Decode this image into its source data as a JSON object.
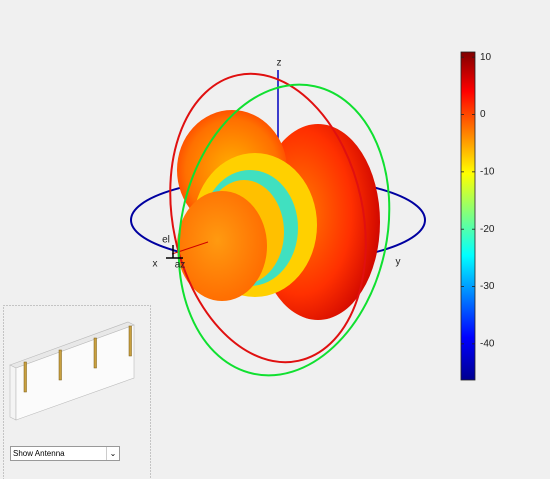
{
  "chart_data": {
    "type": "pattern3d",
    "axis_labels": {
      "z": "z",
      "y": "y",
      "x": "x",
      "el": "el",
      "az": "az"
    },
    "colorbar": {
      "clim": [
        -46.3,
        10.9
      ],
      "ticks": [
        10,
        0,
        -10,
        -20,
        -30,
        -40
      ]
    }
  },
  "controls": {
    "dropdown": "Show Antenna"
  }
}
